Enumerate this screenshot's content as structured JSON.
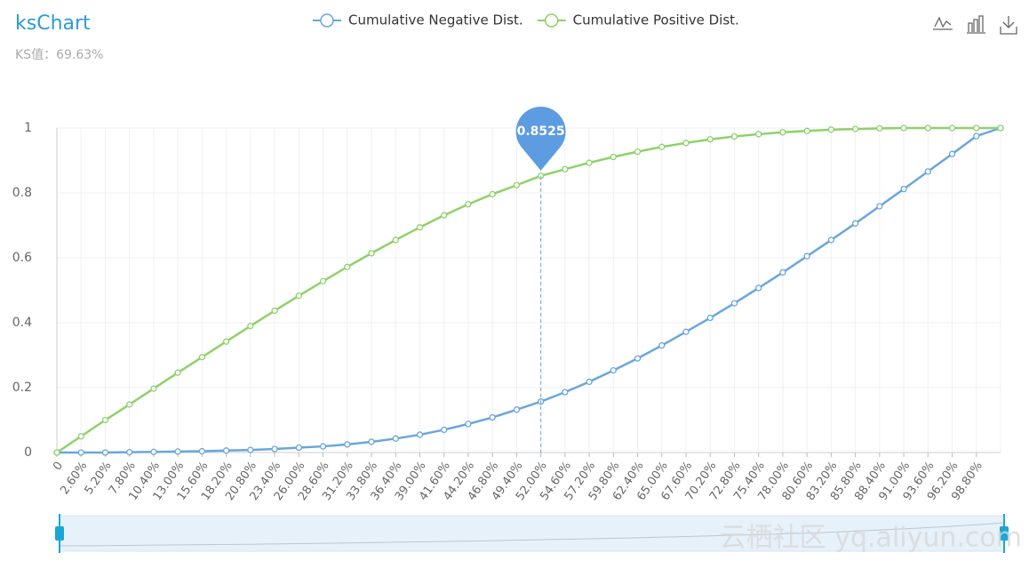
{
  "chart_data": {
    "type": "line",
    "title": "ksChart",
    "subtitle": "KS值：69.63%",
    "watermark": "云栖社区 yq.aliyun.com",
    "categories": [
      "0",
      "2.60%",
      "5.20%",
      "7.80%",
      "10.40%",
      "13.00%",
      "15.60%",
      "18.20%",
      "20.80%",
      "23.40%",
      "26.00%",
      "28.60%",
      "31.20%",
      "33.80%",
      "36.40%",
      "39.00%",
      "41.60%",
      "44.20%",
      "46.80%",
      "49.40%",
      "52.00%",
      "54.60%",
      "57.20%",
      "59.80%",
      "62.40%",
      "65.00%",
      "67.60%",
      "70.20%",
      "72.80%",
      "75.40%",
      "78.00%",
      "80.60%",
      "83.20%",
      "85.80%",
      "88.40%",
      "91.00%",
      "93.60%",
      "96.20%",
      "98.80%",
      null
    ],
    "series": [
      {
        "name": "Cumulative Negative Dist.",
        "color": "#6aa6de",
        "values": [
          0,
          0,
          0,
          0.001,
          0.002,
          0.003,
          0.004,
          0.006,
          0.008,
          0.011,
          0.015,
          0.019,
          0.025,
          0.033,
          0.043,
          0.055,
          0.07,
          0.088,
          0.108,
          0.132,
          0.157,
          0.186,
          0.218,
          0.253,
          0.29,
          0.33,
          0.372,
          0.415,
          0.46,
          0.507,
          0.555,
          0.605,
          0.655,
          0.706,
          0.759,
          0.812,
          0.866,
          0.92,
          0.975,
          1
        ]
      },
      {
        "name": "Cumulative Positive Dist.",
        "color": "#8fd16a",
        "mark_point_index": 20,
        "values": [
          0,
          0.05,
          0.1,
          0.148,
          0.197,
          0.246,
          0.294,
          0.342,
          0.39,
          0.437,
          0.483,
          0.528,
          0.572,
          0.614,
          0.655,
          0.694,
          0.731,
          0.765,
          0.796,
          0.824,
          0.8525,
          0.873,
          0.893,
          0.911,
          0.927,
          0.942,
          0.954,
          0.965,
          0.974,
          0.981,
          0.987,
          0.991,
          0.995,
          0.997,
          0.999,
          1,
          1,
          1,
          1,
          1
        ]
      }
    ],
    "ylim": [
      0,
      1
    ],
    "yticks": [
      0,
      0.2,
      0.4,
      0.6,
      0.8,
      1
    ],
    "grid": true,
    "legend": "top"
  }
}
